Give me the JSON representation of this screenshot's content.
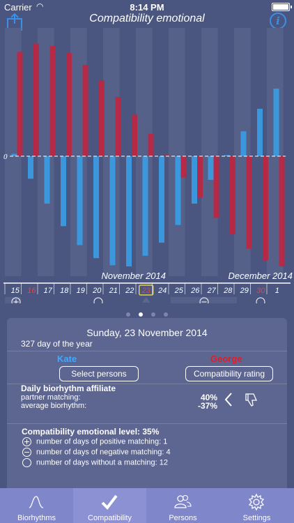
{
  "status": {
    "carrier": "Carrier",
    "time": "8:14 PM"
  },
  "nav": {
    "title": "Compatibility emotional"
  },
  "chart_data": {
    "type": "bar",
    "zero_label": "0",
    "months": [
      "November 2014",
      "December 2014"
    ],
    "days": [
      "15",
      "16",
      "17",
      "18",
      "19",
      "20",
      "21",
      "22",
      "23",
      "24",
      "25",
      "26",
      "27",
      "28",
      "29",
      "30",
      "1"
    ],
    "weekend_days": [
      "16",
      "30"
    ],
    "selected_day": "23",
    "series": [
      {
        "color": "#c0263f",
        "values": [
          0.88,
          0.95,
          0.93,
          0.87,
          0.77,
          0.64,
          0.5,
          0.35,
          0.19,
          0.01,
          -0.18,
          -0.35,
          -0.52,
          -0.66,
          -0.78,
          -0.88,
          -0.93
        ]
      },
      {
        "color": "#3a9ee6",
        "values": [
          0.02,
          -0.19,
          -0.4,
          -0.59,
          -0.75,
          -0.86,
          -0.92,
          -0.93,
          -0.84,
          -0.73,
          -0.58,
          -0.4,
          -0.2,
          0.01,
          0.21,
          0.4,
          0.57
        ]
      }
    ],
    "ylim": [
      -1,
      1
    ]
  },
  "page_dots": 4,
  "page_dot_active": 1,
  "detail": {
    "date": "Sunday, 23 November 2014",
    "day_of_year": "327 day of the year",
    "person_a": "Kate",
    "person_b": "George",
    "select_button": "Select persons",
    "rating_button": "Compatibility rating",
    "affiliate_title": "Daily biorhythm affiliate",
    "partner_label": "partner matching:",
    "partner_value": "40%",
    "average_label": "average biorhythm:",
    "average_value": "-37%",
    "level_title": "Compatibility emotional level: 35%",
    "positive_text": "number of days of positive matching: 1",
    "negative_text": "number of days of negative matching: 4",
    "none_text": "number of days without a matching: 12"
  },
  "tabs": [
    {
      "label": "Biorhythms",
      "icon": "wave-icon"
    },
    {
      "label": "Compatibility",
      "icon": "checkmark-icon"
    },
    {
      "label": "Persons",
      "icon": "persons-icon"
    },
    {
      "label": "Settings",
      "icon": "gear-icon"
    }
  ],
  "colors": {
    "background": "#4a5680",
    "accent": "#3a8fe6",
    "red": "#c0263f",
    "blue": "#3a9ee6"
  }
}
